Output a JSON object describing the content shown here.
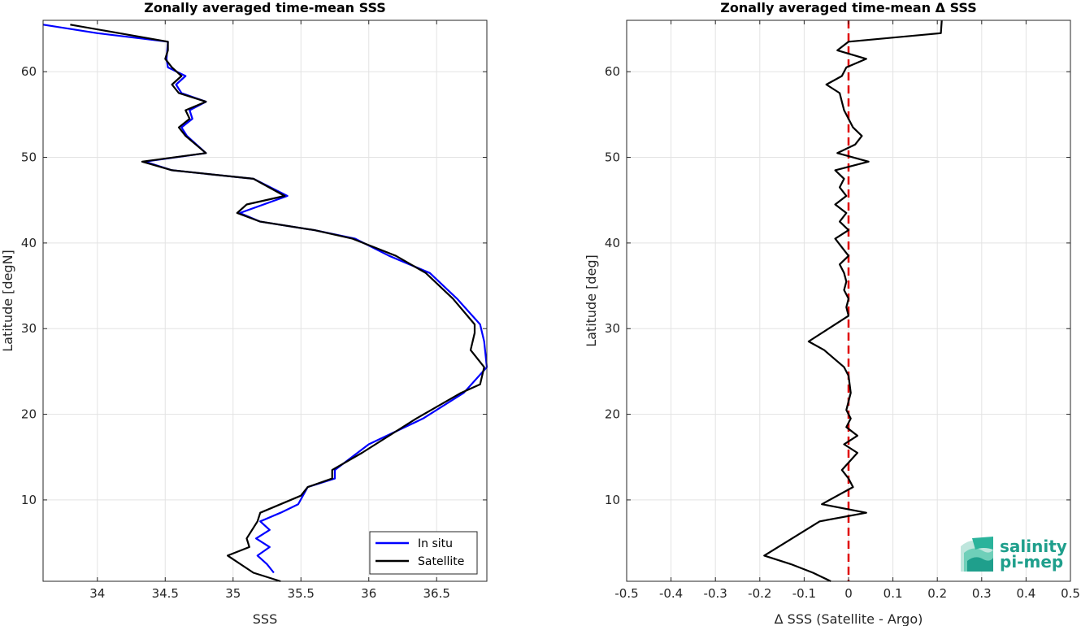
{
  "colors": {
    "insitu": "#0000ff",
    "satellite": "#000000",
    "zero_line": "#e00000",
    "logo": "#1f9f8c"
  },
  "logo": {
    "line1": "salinity",
    "line2": "pi-mep",
    "icon": "salinity-wave-logo-icon"
  },
  "chart_data": [
    {
      "type": "line",
      "title": "Zonally averaged time-mean SSS",
      "xlabel": "SSS",
      "ylabel": "Latitude [degN]",
      "xlim": [
        33.6,
        36.87
      ],
      "ylim": [
        0.5,
        66
      ],
      "xticks": [
        34,
        34.5,
        35,
        35.5,
        36,
        36.5
      ],
      "yticks": [
        10,
        20,
        30,
        40,
        50,
        60
      ],
      "grid": true,
      "legend_position": "bottom-right",
      "series": [
        {
          "name": "In situ",
          "color": "#0000ff",
          "x": [
            33.6,
            34.0,
            34.52,
            34.51,
            34.52,
            34.65,
            34.58,
            34.62,
            34.8,
            34.68,
            34.7,
            34.62,
            34.66,
            34.8,
            34.35,
            34.55,
            35.15,
            35.4,
            35.05,
            35.2,
            35.6,
            35.9,
            36.15,
            36.45,
            36.65,
            36.82,
            36.85,
            36.87,
            36.7,
            36.4,
            36.0,
            35.75,
            35.75,
            35.55,
            35.48,
            35.35,
            35.2,
            35.27,
            35.17,
            35.27,
            35.18,
            35.25,
            35.3
          ],
          "y": [
            65.5,
            64.5,
            63.5,
            61.5,
            60.5,
            59.5,
            58.5,
            57.5,
            56.5,
            55.5,
            54.5,
            53.5,
            52.5,
            50.5,
            49.5,
            48.5,
            47.5,
            45.5,
            43.5,
            42.5,
            41.5,
            40.5,
            38.5,
            36.5,
            33.5,
            30.5,
            28.5,
            25.5,
            22.5,
            19.5,
            16.5,
            13.5,
            12.5,
            11.5,
            9.5,
            8.5,
            7.5,
            6.5,
            5.5,
            4.5,
            3.5,
            2.5,
            1.5
          ]
        },
        {
          "name": "Satellite",
          "color": "#000000",
          "x": [
            33.8,
            34.52,
            34.52,
            34.5,
            34.55,
            34.62,
            34.55,
            34.6,
            34.8,
            34.65,
            34.68,
            34.6,
            34.65,
            34.8,
            34.33,
            34.55,
            35.15,
            35.38,
            35.1,
            35.03,
            35.2,
            35.6,
            35.88,
            36.2,
            36.42,
            36.62,
            36.78,
            36.78,
            36.75,
            36.85,
            36.82,
            36.68,
            36.35,
            35.95,
            35.73,
            35.73,
            35.55,
            35.5,
            35.35,
            35.2,
            35.18,
            35.1,
            35.12,
            34.96,
            35.15,
            35.35
          ],
          "y": [
            65.5,
            63.5,
            62.5,
            61.5,
            60.5,
            59.5,
            58.5,
            57.5,
            56.5,
            55.5,
            54.5,
            53.5,
            52.5,
            50.5,
            49.5,
            48.5,
            47.5,
            45.5,
            44.5,
            43.5,
            42.5,
            41.5,
            40.5,
            38.5,
            36.5,
            33.5,
            30.5,
            29.5,
            27.5,
            25.5,
            23.5,
            22.5,
            19.5,
            15.5,
            13.5,
            12.5,
            11.5,
            10.5,
            9.5,
            8.5,
            7.5,
            5.5,
            4.5,
            3.5,
            1.5,
            0.5
          ]
        }
      ]
    },
    {
      "type": "line",
      "title": "Zonally averaged time-mean Δ SSS",
      "xlabel": "Δ SSS (Satellite - Argo)",
      "ylabel": "Latitude [deg]",
      "xlim": [
        -0.5,
        0.5
      ],
      "ylim": [
        0.5,
        66
      ],
      "xticks": [
        -0.5,
        -0.4,
        -0.3,
        -0.2,
        -0.1,
        0,
        0.1,
        0.2,
        0.3,
        0.4,
        0.5
      ],
      "yticks": [
        10,
        20,
        30,
        40,
        50,
        60
      ],
      "grid": true,
      "reference_line_x": 0,
      "series": [
        {
          "color": "#000000",
          "x": [
            0.21,
            0.208,
            0.0,
            -0.025,
            0.04,
            -0.005,
            -0.015,
            -0.05,
            -0.02,
            -0.015,
            -0.01,
            0.0,
            0.01,
            0.03,
            0.015,
            -0.025,
            0.045,
            -0.03,
            -0.01,
            -0.02,
            -0.005,
            -0.03,
            -0.005,
            -0.02,
            0.0,
            -0.03,
            -0.015,
            0.0,
            -0.02,
            -0.01,
            -0.005,
            -0.01,
            0.0,
            -0.005,
            0.0,
            -0.09,
            -0.055,
            -0.01,
            0.0,
            0.005,
            -0.005,
            0.005,
            -0.005,
            0.02,
            -0.01,
            0.02,
            -0.015,
            0.0,
            0.01,
            -0.06,
            0.04,
            -0.065,
            -0.19,
            -0.13,
            -0.08,
            -0.06,
            -0.04
          ],
          "y": [
            66,
            64.5,
            63.5,
            62.5,
            61.5,
            60.5,
            59.5,
            58.5,
            57.5,
            56.5,
            55.5,
            54.5,
            53.5,
            52.5,
            51.5,
            50.5,
            49.5,
            48.5,
            47.5,
            46.5,
            45.5,
            44.5,
            43.5,
            42.5,
            41.5,
            40.5,
            39.5,
            38.5,
            37.5,
            36.5,
            35.5,
            34.5,
            33.5,
            32.5,
            31.5,
            28.5,
            27.5,
            25.5,
            24.5,
            22.5,
            20.5,
            19.5,
            18.5,
            17.5,
            16.5,
            15.5,
            13.5,
            12.5,
            11.5,
            9.5,
            8.5,
            7.5,
            3.5,
            2.5,
            1.5,
            1.0,
            0.5
          ]
        }
      ]
    }
  ]
}
